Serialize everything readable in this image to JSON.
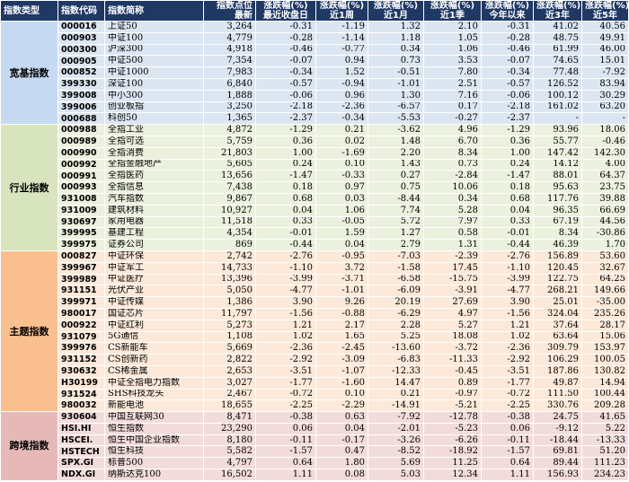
{
  "headers": [
    {
      "line1": "指数类型",
      "line2": ""
    },
    {
      "line1": "指数代码",
      "line2": ""
    },
    {
      "line1": "指数简称",
      "line2": ""
    },
    {
      "line1": "指数点位",
      "line2": "最新"
    },
    {
      "line1": "涨跌幅(%)",
      "line2": "最近收盘日"
    },
    {
      "line1": "涨跌幅(%)",
      "line2": "近1周"
    },
    {
      "line1": "涨跌幅(%)",
      "line2": "近1月"
    },
    {
      "line1": "涨跌幅(%)",
      "line2": "近1季"
    },
    {
      "line1": "涨跌幅(%)",
      "line2": "今年以来"
    },
    {
      "line1": "涨跌幅(%)",
      "line2": "近3年"
    },
    {
      "line1": "涨跌幅(%)",
      "line2": "近5年"
    }
  ],
  "groups": [
    {
      "category": "宽基指数",
      "rows": [
        [
          "000016",
          "上证50",
          "3,264",
          "-0.31",
          "-1.19",
          "1.32",
          "2.10",
          "-0.31",
          "41.02",
          "40.56"
        ],
        [
          "000903",
          "中证100",
          "4,779",
          "-0.28",
          "-1.14",
          "1.18",
          "1.05",
          "-0.28",
          "48.75",
          "49.91"
        ],
        [
          "000300",
          "沪深300",
          "4,918",
          "-0.46",
          "-0.77",
          "0.34",
          "1.06",
          "-0.46",
          "61.99",
          "46.00"
        ],
        [
          "000905",
          "中证500",
          "7,354",
          "-0.07",
          "0.94",
          "0.73",
          "3.53",
          "-0.07",
          "74.65",
          "15.01"
        ],
        [
          "000852",
          "中证1000",
          "7,983",
          "-0.34",
          "1.52",
          "-0.51",
          "7.80",
          "-0.34",
          "77.48",
          "-7.92"
        ],
        [
          "399330",
          "深证100",
          "6,840",
          "-0.57",
          "-0.94",
          "-1.01",
          "2.51",
          "-0.57",
          "126.52",
          "83.94"
        ],
        [
          "399008",
          "中小300",
          "1,888",
          "-0.06",
          "0.96",
          "1.30",
          "7.16",
          "-0.06",
          "100.12",
          "30.29"
        ],
        [
          "399006",
          "创业板指",
          "3,250",
          "-2.18",
          "-2.36",
          "-6.57",
          "0.17",
          "-2.18",
          "161.02",
          "63.20"
        ],
        [
          "000688",
          "科创50",
          "1,365",
          "-2.37",
          "-0.34",
          "-5.53",
          "-0.27",
          "-2.37",
          "-",
          "-"
        ]
      ]
    },
    {
      "category": "行业指数",
      "rows": [
        [
          "000988",
          "全指工业",
          "4,872",
          "-1.29",
          "0.21",
          "-3.62",
          "4.96",
          "-1.29",
          "93.96",
          "18.06"
        ],
        [
          "000989",
          "全指可选",
          "5,759",
          "0.36",
          "0.02",
          "1.48",
          "6.70",
          "0.36",
          "55.77",
          "-0.46"
        ],
        [
          "000990",
          "全指消费",
          "21,803",
          "1.00",
          "-1.69",
          "2.20",
          "8.34",
          "1.00",
          "147.42",
          "142.30"
        ],
        [
          "000992",
          "全指金融地产",
          "5,605",
          "0.24",
          "0.10",
          "1.43",
          "0.73",
          "0.24",
          "14.12",
          "4.00"
        ],
        [
          "000991",
          "全指医药",
          "13,656",
          "-1.47",
          "-0.33",
          "0.27",
          "-2.84",
          "-1.47",
          "88.01",
          "64.37"
        ],
        [
          "000993",
          "全指信息",
          "7,438",
          "0.18",
          "0.97",
          "0.75",
          "10.06",
          "0.18",
          "95.63",
          "23.75"
        ],
        [
          "931008",
          "汽车指数",
          "9,867",
          "0.68",
          "0.03",
          "-8.44",
          "0.34",
          "0.68",
          "117.76",
          "39.88"
        ],
        [
          "931009",
          "建筑材料",
          "10,927",
          "0.04",
          "1.06",
          "7.74",
          "5.28",
          "0.04",
          "96.35",
          "66.69"
        ],
        [
          "930697",
          "家用电器",
          "11,518",
          "0.33",
          "-0.05",
          "5.72",
          "7.97",
          "0.33",
          "67.19",
          "44.56"
        ],
        [
          "399995",
          "基建工程",
          "4,354",
          "-0.01",
          "1.59",
          "1.27",
          "0.58",
          "-0.01",
          "8.34",
          "-30.86"
        ],
        [
          "399975",
          "证券公司",
          "869",
          "-0.44",
          "0.04",
          "2.79",
          "1.31",
          "-0.44",
          "46.39",
          "1.70"
        ]
      ]
    },
    {
      "category": "主题指数",
      "rows": [
        [
          "000827",
          "中证环保",
          "2,742",
          "-2.76",
          "-0.95",
          "-7.03",
          "-2.39",
          "-2.76",
          "156.89",
          "53.60"
        ],
        [
          "399967",
          "中证军工",
          "14,733",
          "-1.10",
          "3.72",
          "-1.58",
          "17.45",
          "-1.10",
          "120.45",
          "32.67"
        ],
        [
          "399989",
          "中证医疗",
          "13,396",
          "-3.99",
          "-3.71",
          "-6.58",
          "-15.75",
          "-3.99",
          "122.75",
          "64.25"
        ],
        [
          "931151",
          "光伏产业",
          "5,050",
          "-4.77",
          "-1.01",
          "-6.09",
          "-3.91",
          "-4.77",
          "268.21",
          "149.66"
        ],
        [
          "399971",
          "中证传媒",
          "1,386",
          "3.90",
          "9.26",
          "20.19",
          "27.69",
          "3.90",
          "25.01",
          "-35.00"
        ],
        [
          "980017",
          "国证芯片",
          "11,797",
          "-1.56",
          "-0.88",
          "-6.29",
          "4.97",
          "-1.56",
          "324.04",
          "235.26"
        ],
        [
          "000922",
          "中证红利",
          "5,273",
          "1.21",
          "2.17",
          "2.28",
          "5.27",
          "1.21",
          "37.64",
          "28.17"
        ],
        [
          "931079",
          "5G通信",
          "1,108",
          "1.02",
          "1.65",
          "5.25",
          "18.08",
          "1.02",
          "63.64",
          "15.06"
        ],
        [
          "399976",
          "CS新能车",
          "5,669",
          "-2.36",
          "-2.45",
          "-13.60",
          "-3.72",
          "-2.36",
          "309.79",
          "153.97"
        ],
        [
          "931152",
          "CS创新药",
          "2,822",
          "-2.92",
          "-3.09",
          "-6.83",
          "-11.33",
          "-2.92",
          "106.29",
          "100.05"
        ],
        [
          "930632",
          "CS稀金属",
          "2,653",
          "-3.51",
          "-1.07",
          "-12.33",
          "-0.45",
          "-3.51",
          "187.86",
          "130.82"
        ],
        [
          "H30199",
          "中证全指电力指数",
          "3,027",
          "-1.77",
          "-1.60",
          "14.47",
          "0.89",
          "-1.77",
          "49.87",
          "14.94"
        ],
        [
          "931524",
          "SHS科技龙头",
          "2,467",
          "-0.72",
          "0.10",
          "0.21",
          "-0.97",
          "-0.72",
          "111.50",
          "100.44"
        ],
        [
          "980032",
          "新能电池",
          "18,655",
          "-2.25",
          "-2.29",
          "-14.91",
          "-5.21",
          "-2.25",
          "330.76",
          "209.28"
        ]
      ]
    },
    {
      "category": "跨境指数",
      "rows": [
        [
          "930604",
          "中国互联网30",
          "8,471",
          "-0.38",
          "0.63",
          "-7.92",
          "-12.78",
          "-0.38",
          "24.75",
          "41.65"
        ],
        [
          "HSI.HI",
          "恒生指数",
          "23,290",
          "0.06",
          "0.04",
          "-2.01",
          "-5.23",
          "0.06",
          "-9.12",
          "5.22"
        ],
        [
          "HSCEI.",
          "恒生中国企业指数",
          "8,180",
          "-0.11",
          "-0.17",
          "-3.26",
          "-6.26",
          "-0.11",
          "-18.44",
          "-13.33"
        ],
        [
          "HSTECH",
          "恒生科技",
          "5,582",
          "-1.57",
          "0.47",
          "-8.52",
          "-18.92",
          "-1.57",
          "69.81",
          "51.20"
        ],
        [
          "SPX.GI",
          "标普500",
          "4,797",
          "0.64",
          "1.80",
          "5.69",
          "11.25",
          "0.64",
          "89.44",
          "111.23"
        ],
        [
          "NDX.GI",
          "纳斯达克100",
          "16,502",
          "1.11",
          "0.08",
          "5.03",
          "12.34",
          "1.11",
          "156.93",
          "234.23"
        ]
      ]
    }
  ]
}
